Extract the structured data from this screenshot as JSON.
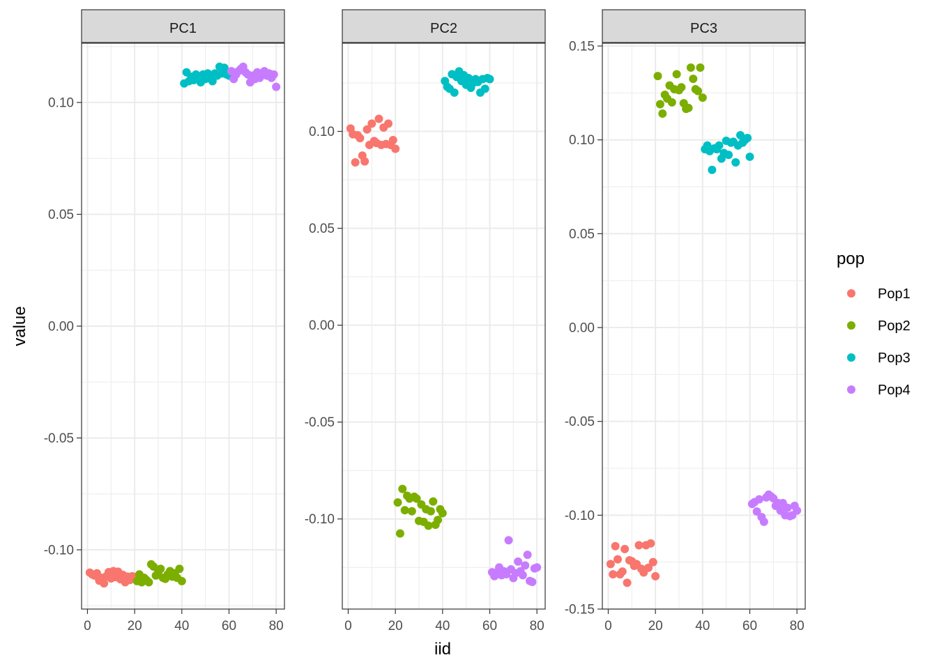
{
  "chart_data": {
    "type": "scatter",
    "xlabel": "iid",
    "ylabel": "value",
    "xticks": [
      0,
      20,
      40,
      60,
      80
    ],
    "legend": {
      "title": "pop",
      "position": "right",
      "entries": [
        {
          "name": "Pop1",
          "color": "#F8766D"
        },
        {
          "name": "Pop2",
          "color": "#7CAE00"
        },
        {
          "name": "Pop3",
          "color": "#00BFC4"
        },
        {
          "name": "Pop4",
          "color": "#C77CFF"
        }
      ]
    },
    "panels": [
      {
        "title": "PC1",
        "xlim": [
          -2.5,
          83.5
        ],
        "ylim": [
          -0.1265,
          0.1265
        ],
        "yticks": [
          -0.1,
          -0.05,
          0.0,
          0.05,
          0.1
        ],
        "ytick_labels": [
          "-0.10",
          "-0.05",
          "0.00",
          "0.05",
          "0.10"
        ],
        "series": [
          {
            "name": "Pop1",
            "x": [
              1,
              2,
              3,
              4,
              5,
              6,
              7,
              8,
              9,
              10,
              11,
              12,
              13,
              14,
              15,
              16,
              17,
              18,
              19,
              20
            ],
            "y": [
              -0.1102,
              -0.111,
              -0.1115,
              -0.1105,
              -0.1138,
              -0.1125,
              -0.115,
              -0.1118,
              -0.11,
              -0.1128,
              -0.1095,
              -0.1122,
              -0.1098,
              -0.1132,
              -0.1112,
              -0.1145,
              -0.112,
              -0.1135,
              -0.1118,
              -0.1125
            ]
          },
          {
            "name": "Pop2",
            "x": [
              21,
              22,
              23,
              24,
              25,
              26,
              27,
              28,
              29,
              30,
              31,
              32,
              33,
              34,
              35,
              36,
              37,
              38,
              39,
              40
            ],
            "y": [
              -0.114,
              -0.111,
              -0.1145,
              -0.1125,
              -0.1135,
              -0.1145,
              -0.1065,
              -0.1075,
              -0.1115,
              -0.11,
              -0.1085,
              -0.1125,
              -0.113,
              -0.111,
              -0.1095,
              -0.112,
              -0.1105,
              -0.1125,
              -0.1085,
              -0.114
            ]
          },
          {
            "name": "Pop3",
            "x": [
              41,
              42,
              43,
              44,
              45,
              46,
              47,
              48,
              49,
              50,
              51,
              52,
              53,
              54,
              55,
              56,
              57,
              58,
              59,
              60
            ],
            "y": [
              0.1085,
              0.1135,
              0.1095,
              0.1115,
              0.11,
              0.1125,
              0.111,
              0.109,
              0.1125,
              0.1105,
              0.113,
              0.1115,
              0.1095,
              0.113,
              0.112,
              0.116,
              0.113,
              0.1155,
              0.1125,
              0.112
            ]
          },
          {
            "name": "Pop4",
            "x": [
              61,
              62,
              63,
              64,
              65,
              66,
              67,
              68,
              69,
              70,
              71,
              72,
              73,
              74,
              75,
              76,
              77,
              78,
              79,
              80
            ],
            "y": [
              0.114,
              0.1105,
              0.1125,
              0.114,
              0.115,
              0.116,
              0.1135,
              0.1125,
              0.109,
              0.112,
              0.1105,
              0.1135,
              0.111,
              0.1125,
              0.114,
              0.112,
              0.113,
              0.111,
              0.1125,
              0.107
            ]
          }
        ]
      },
      {
        "title": "PC2",
        "xlim": [
          -2.5,
          83.5
        ],
        "ylim": [
          -0.1465,
          0.1455
        ],
        "yticks": [
          -0.1,
          -0.05,
          0.0,
          0.05,
          0.1
        ],
        "ytick_labels": [
          "-0.10",
          "-0.05",
          "0.00",
          "0.05",
          "0.10"
        ],
        "series": [
          {
            "name": "Pop1",
            "x": [
              1,
              2,
              3,
              4,
              5,
              6,
              7,
              8,
              9,
              10,
              11,
              12,
              13,
              14,
              15,
              16,
              17,
              18,
              19,
              20
            ],
            "y": [
              0.1015,
              0.0985,
              0.084,
              0.098,
              0.0965,
              0.0875,
              0.0845,
              0.101,
              0.093,
              0.104,
              0.095,
              0.094,
              0.1065,
              0.093,
              0.102,
              0.0935,
              0.104,
              0.093,
              0.0955,
              0.091
            ]
          },
          {
            "name": "Pop2",
            "x": [
              21,
              22,
              23,
              24,
              25,
              26,
              27,
              28,
              29,
              30,
              31,
              32,
              33,
              34,
              35,
              36,
              37,
              38,
              39,
              40
            ],
            "y": [
              -0.0915,
              -0.1075,
              -0.0845,
              -0.0955,
              -0.088,
              -0.0895,
              -0.096,
              -0.0885,
              -0.0895,
              -0.101,
              -0.0925,
              -0.1015,
              -0.095,
              -0.1035,
              -0.096,
              -0.091,
              -0.103,
              -0.1005,
              -0.095,
              -0.097
            ]
          },
          {
            "name": "Pop3",
            "x": [
              41,
              42,
              43,
              44,
              45,
              46,
              47,
              48,
              49,
              50,
              51,
              52,
              53,
              54,
              55,
              56,
              57,
              58,
              59,
              60
            ],
            "y": [
              0.126,
              0.123,
              0.122,
              0.1295,
              0.12,
              0.128,
              0.131,
              0.126,
              0.129,
              0.124,
              0.1275,
              0.1225,
              0.125,
              0.127,
              0.1255,
              0.12,
              0.127,
              0.122,
              0.1275,
              0.127
            ]
          },
          {
            "name": "Pop4",
            "x": [
              61,
              62,
              63,
              64,
              65,
              66,
              67,
              68,
              69,
              70,
              71,
              72,
              73,
              74,
              75,
              76,
              77,
              78,
              79,
              80
            ],
            "y": [
              -0.1275,
              -0.1295,
              -0.1275,
              -0.125,
              -0.129,
              -0.127,
              -0.1285,
              -0.111,
              -0.126,
              -0.1305,
              -0.128,
              -0.122,
              -0.127,
              -0.129,
              -0.124,
              -0.1185,
              -0.132,
              -0.1325,
              -0.1255,
              -0.125
            ]
          }
        ]
      },
      {
        "title": "PC3",
        "xlim": [
          -2.5,
          83.5
        ],
        "ylim": [
          -0.15,
          0.1515
        ],
        "yticks": [
          -0.15,
          -0.1,
          -0.05,
          0.0,
          0.05,
          0.1,
          0.15
        ],
        "ytick_labels": [
          "-0.15",
          "-0.10",
          "-0.05",
          "0.00",
          "0.05",
          "0.10",
          "0.15"
        ],
        "series": [
          {
            "name": "Pop1",
            "x": [
              1,
              2,
              3,
              4,
              5,
              6,
              7,
              8,
              9,
              10,
              11,
              12,
              13,
              14,
              15,
              16,
              17,
              18,
              19,
              20
            ],
            "y": [
              -0.126,
              -0.1315,
              -0.1165,
              -0.1235,
              -0.1315,
              -0.13,
              -0.118,
              -0.136,
              -0.124,
              -0.1245,
              -0.127,
              -0.126,
              -0.116,
              -0.1285,
              -0.1305,
              -0.116,
              -0.128,
              -0.115,
              -0.125,
              -0.1325
            ]
          },
          {
            "name": "Pop2",
            "x": [
              21,
              22,
              23,
              24,
              25,
              26,
              27,
              28,
              29,
              30,
              31,
              32,
              33,
              34,
              35,
              36,
              37,
              38,
              39,
              40
            ],
            "y": [
              0.134,
              0.119,
              0.114,
              0.124,
              0.122,
              0.129,
              0.12,
              0.127,
              0.135,
              0.1265,
              0.128,
              0.1195,
              0.1165,
              0.117,
              0.1385,
              0.1325,
              0.127,
              0.126,
              0.1385,
              0.1225
            ]
          },
          {
            "name": "Pop3",
            "x": [
              41,
              42,
              43,
              44,
              45,
              46,
              47,
              48,
              49,
              50,
              51,
              52,
              53,
              54,
              55,
              56,
              57,
              58,
              59,
              60
            ],
            "y": [
              0.095,
              0.097,
              0.094,
              0.084,
              0.0955,
              0.095,
              0.097,
              0.09,
              0.093,
              0.0995,
              0.092,
              0.0985,
              0.099,
              0.088,
              0.097,
              0.1025,
              0.0985,
              0.1,
              0.101,
              0.091
            ]
          },
          {
            "name": "Pop4",
            "x": [
              61,
              62,
              63,
              64,
              65,
              66,
              67,
              68,
              69,
              70,
              71,
              72,
              73,
              74,
              75,
              76,
              77,
              78,
              79,
              80
            ],
            "y": [
              -0.094,
              -0.093,
              -0.098,
              -0.0915,
              -0.101,
              -0.1035,
              -0.0905,
              -0.089,
              -0.09,
              -0.091,
              -0.095,
              -0.0935,
              -0.0975,
              -0.0935,
              -0.1,
              -0.096,
              -0.1005,
              -0.1,
              -0.095,
              -0.0975
            ]
          }
        ]
      }
    ]
  }
}
